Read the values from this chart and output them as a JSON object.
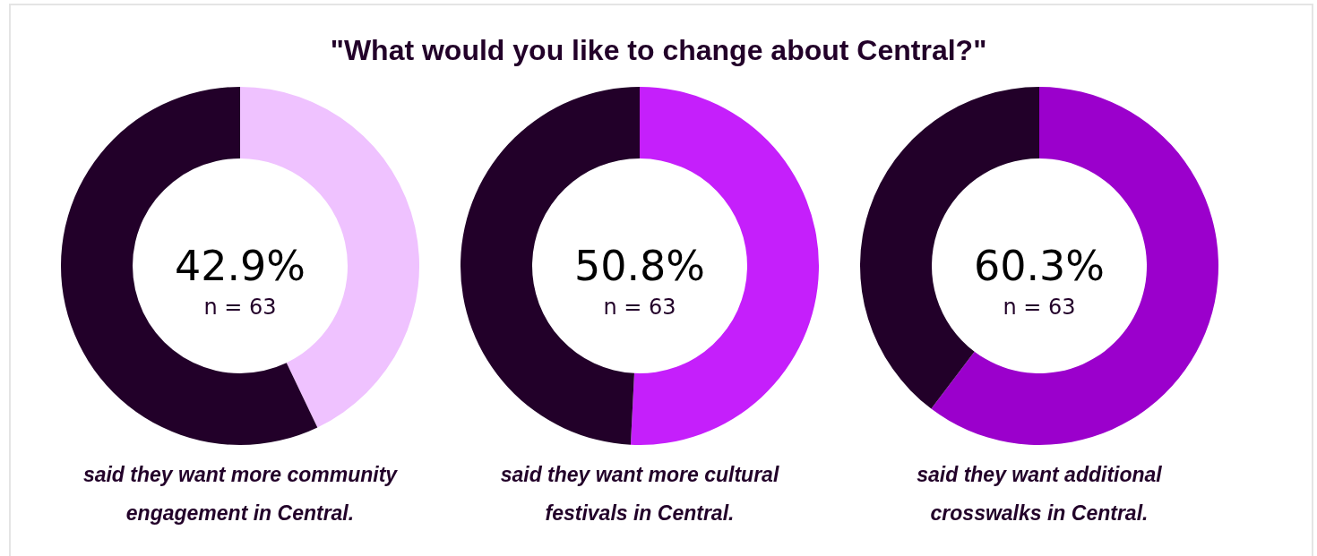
{
  "chart_data": [
    {
      "type": "donut",
      "title": "\"What would you like to change about Central?\"",
      "categories": [
        null,
        null
      ],
      "values": [
        42.9,
        57.1
      ],
      "colors": [
        "#efc2ff",
        "#220029"
      ],
      "annotations": [
        "42.9%",
        "n = 63",
        "said they want more community engagement in Central."
      ],
      "legend": false
    },
    {
      "type": "donut",
      "categories": [
        null,
        null
      ],
      "values": [
        50.8,
        49.2
      ],
      "colors": [
        "#c51ffb",
        "#220029"
      ],
      "annotations": [
        "50.8%",
        "n = 63",
        "said they want more cultural festivals in Central."
      ],
      "legend": false
    },
    {
      "type": "donut",
      "categories": [
        null,
        null
      ],
      "values": [
        60.3,
        39.7
      ],
      "colors": [
        "#9b00cc",
        "#220029"
      ],
      "annotations": [
        "60.3%",
        "n = 63",
        "said they want additional crosswalks in Central."
      ],
      "legend": false
    }
  ]
}
